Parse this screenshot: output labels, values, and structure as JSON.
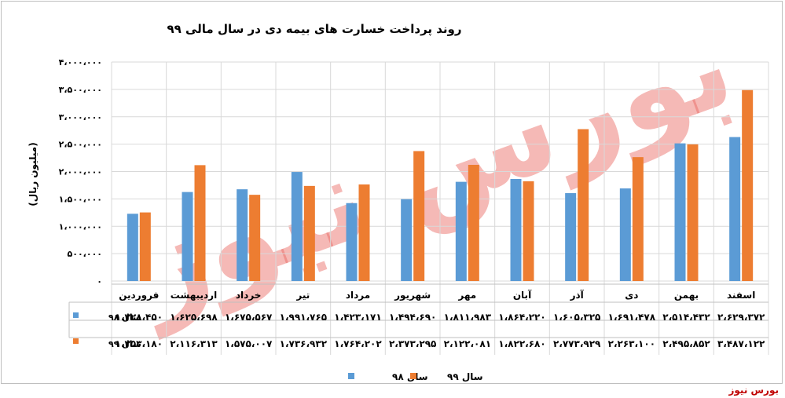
{
  "chart_data": {
    "type": "bar",
    "title": "روند پرداخت خسارت های بیمه دی در سال مالی ۹۹",
    "ylabel": "(میلیون ریال)",
    "xlabel": "",
    "ylim": [
      0,
      4000000
    ],
    "yticks": [
      0,
      500000,
      1000000,
      1500000,
      2000000,
      2500000,
      3000000,
      3500000,
      4000000
    ],
    "ytick_labels": [
      "۰",
      "۵۰۰،۰۰۰",
      "۱،۰۰۰،۰۰۰",
      "۱،۵۰۰،۰۰۰",
      "۲،۰۰۰،۰۰۰",
      "۲،۵۰۰،۰۰۰",
      "۳،۰۰۰،۰۰۰",
      "۳،۵۰۰،۰۰۰",
      "۴،۰۰۰،۰۰۰"
    ],
    "grid": true,
    "legend_position": "bottom",
    "categories": [
      "فروردین",
      "اردیبهشت",
      "خرداد",
      "تیر",
      "مرداد",
      "شهریور",
      "مهر",
      "آبان",
      "آذر",
      "دی",
      "بهمن",
      "اسفند"
    ],
    "series": [
      {
        "name": "سال ۹۸",
        "color": "#5b9bd5",
        "values": [
          1228450,
          1625698,
          1675567,
          1991765,
          1423171,
          1494690,
          1811983,
          1864220,
          1605325,
          1691478,
          2514432,
          2629372
        ],
        "value_labels": [
          "۱،۲۲۸،۴۵۰",
          "۱،۶۲۵،۶۹۸",
          "۱،۶۷۵،۵۶۷",
          "۱،۹۹۱،۷۶۵",
          "۱،۴۲۳،۱۷۱",
          "۱،۴۹۴،۶۹۰",
          "۱،۸۱۱،۹۸۳",
          "۱،۸۶۴،۲۲۰",
          "۱،۶۰۵،۳۲۵",
          "۱،۶۹۱،۴۷۸",
          "۲،۵۱۴،۴۳۲",
          "۲،۶۲۹،۳۷۲"
        ]
      },
      {
        "name": "سال ۹۹",
        "color": "#ed7d31",
        "values": [
          1253180,
          2116313,
          1575007,
          1736932,
          1764202,
          2373295,
          2122081,
          1822680,
          2773929,
          2263100,
          2495852,
          3487122
        ],
        "value_labels": [
          "۱،۲۵۳،۱۸۰",
          "۲،۱۱۶،۳۱۳",
          "۱،۵۷۵،۰۰۷",
          "۱،۷۳۶،۹۳۲",
          "۱،۷۶۴،۲۰۲",
          "۲،۳۷۳،۲۹۵",
          "۲،۱۲۲،۰۸۱",
          "۱،۸۲۲،۶۸۰",
          "۲،۷۷۳،۹۲۹",
          "۲،۲۶۳،۱۰۰",
          "۲،۴۹۵،۸۵۲",
          "۳،۴۸۷،۱۲۲"
        ]
      }
    ]
  },
  "watermark": "بورس نیوز",
  "source_label": "بورس نیوز"
}
